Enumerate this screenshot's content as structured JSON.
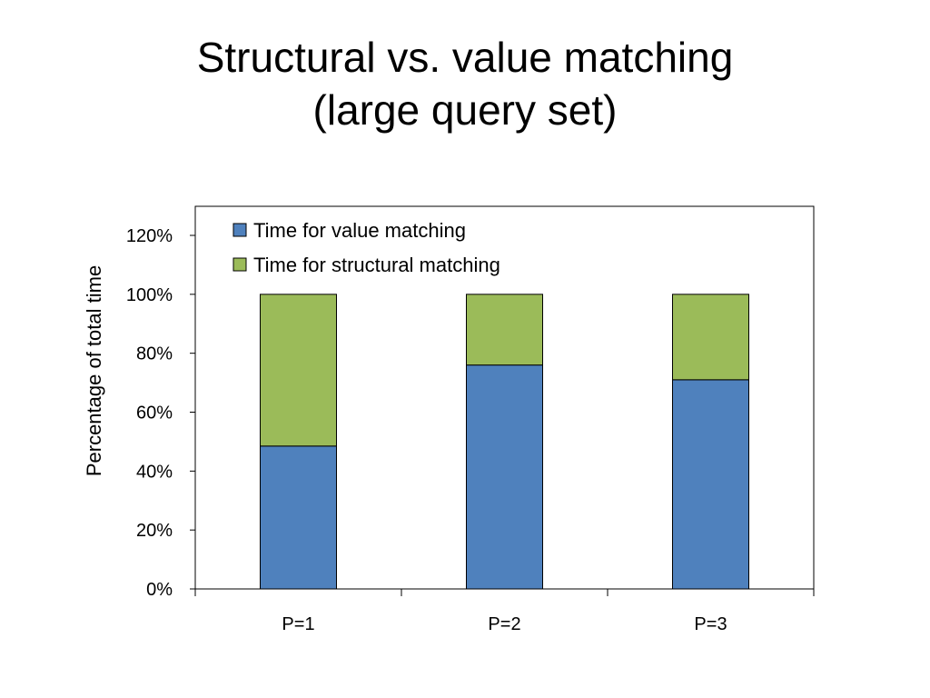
{
  "title": {
    "line1": "Structural vs. value matching",
    "line2": "(large query set)"
  },
  "chart_data": {
    "type": "bar",
    "stacked": true,
    "categories": [
      "P=1",
      "P=2",
      "P=3"
    ],
    "series": [
      {
        "name": "Time for value matching",
        "values": [
          48.5,
          76,
          71
        ],
        "color": "#4F81BD"
      },
      {
        "name": "Time for structural matching",
        "values": [
          51.5,
          24,
          29
        ],
        "color": "#9BBB59"
      }
    ],
    "xlabel": "",
    "ylabel": "Percentage of total time",
    "ylim": [
      0,
      120
    ],
    "yticks": [
      "0%",
      "20%",
      "40%",
      "60%",
      "80%",
      "100%",
      "120%"
    ],
    "ytick_values": [
      0,
      20,
      40,
      60,
      80,
      100,
      120
    ],
    "grid": false,
    "legend_position": "top-left"
  }
}
